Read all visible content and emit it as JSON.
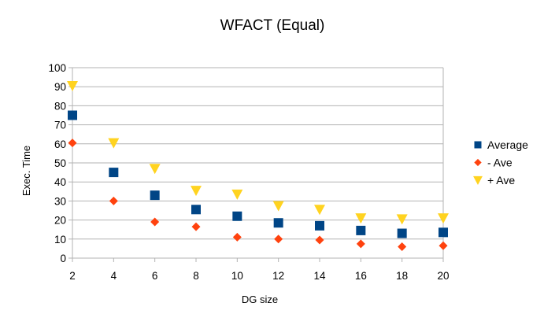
{
  "chart_data": {
    "type": "scatter",
    "title": "WFACT (Equal)",
    "xlabel": "DG size",
    "ylabel": "Exec. Time",
    "xlim": [
      2,
      20
    ],
    "ylim": [
      0,
      100
    ],
    "x_ticks": [
      2,
      4,
      6,
      8,
      10,
      12,
      14,
      16,
      18,
      20
    ],
    "y_ticks": [
      0,
      10,
      20,
      30,
      40,
      50,
      60,
      70,
      80,
      90,
      100
    ],
    "grid": "horizontal",
    "legend_position": "right",
    "x": [
      2,
      4,
      6,
      8,
      10,
      12,
      14,
      16,
      18,
      20
    ],
    "series": [
      {
        "name": "Average",
        "marker": "square",
        "color": "#004586",
        "values": [
          75,
          45,
          33,
          25.5,
          22,
          18.5,
          17,
          14.5,
          13,
          13.5
        ]
      },
      {
        "name": "- Ave",
        "marker": "diamond",
        "color": "#ff420e",
        "values": [
          60.5,
          30,
          19,
          16.5,
          11,
          10,
          9.5,
          7.5,
          6,
          6.5
        ]
      },
      {
        "name": "+ Ave",
        "marker": "triangle-down",
        "color": "#ffd320",
        "values": [
          90.5,
          60.5,
          47,
          35.5,
          33.5,
          27.5,
          25.5,
          21,
          20.5,
          21
        ]
      }
    ]
  }
}
